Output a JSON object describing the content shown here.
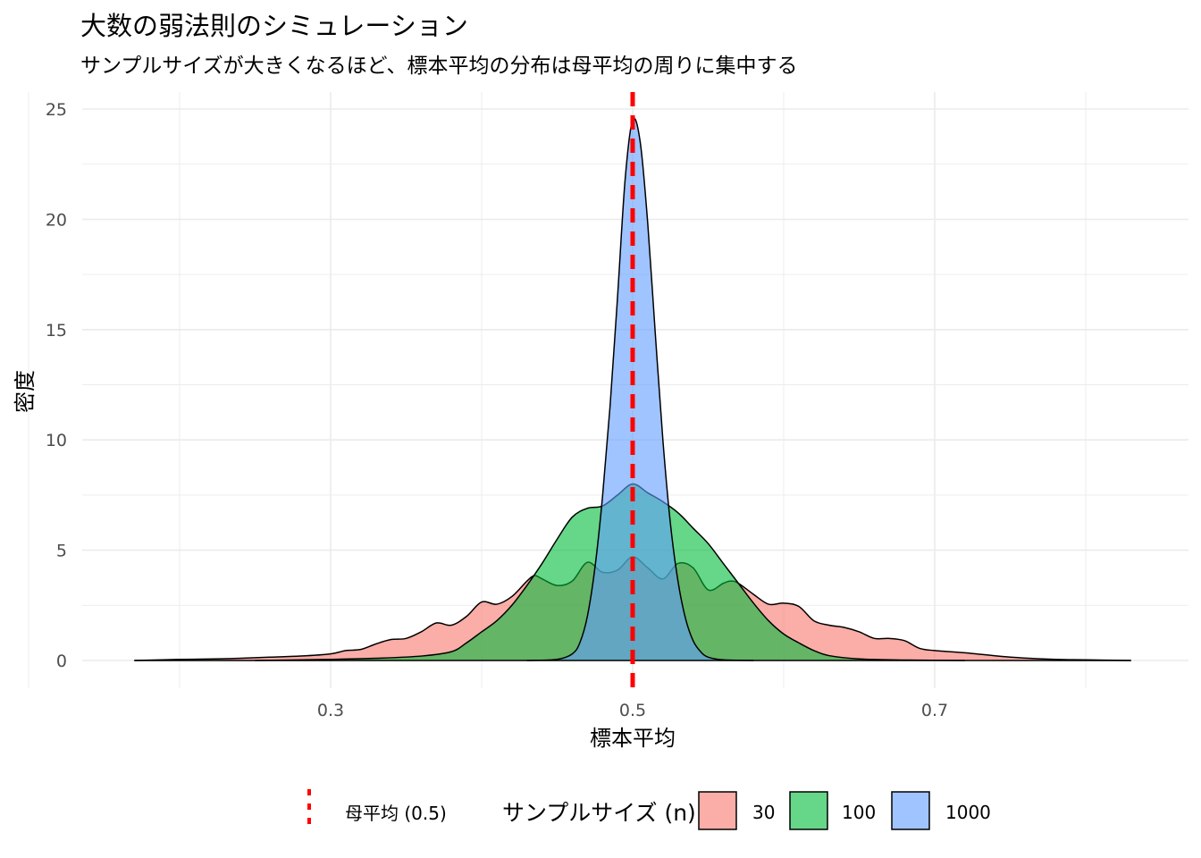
{
  "chart_data": {
    "type": "area",
    "title": "大数の弱法則のシミュレーション",
    "subtitle": "サンプルサイズが大きくなるほど、標本平均の分布は母平均の周りに集中する",
    "xlabel": "標本平均",
    "ylabel": "密度",
    "xlim": [
      0.1,
      0.9
    ],
    "ylim": [
      0,
      25
    ],
    "x_ticks": [
      0.3,
      0.5,
      0.7
    ],
    "x_tick_labels": [
      "0.3",
      "0.5",
      "0.7"
    ],
    "y_ticks": [
      0,
      5,
      10,
      15,
      20,
      25
    ],
    "y_tick_labels": [
      "0",
      "5",
      "10",
      "15",
      "20",
      "25"
    ],
    "grid": true,
    "legend_position": "bottom",
    "legend_title": "サンプルサイズ (n)",
    "reference_line": {
      "x": 0.5,
      "label": "母平均 (0.5)",
      "color": "#ff0000",
      "style": "dashed"
    },
    "series": [
      {
        "name": "30",
        "color": "#f8766d",
        "x": [
          0.17,
          0.2,
          0.23,
          0.26,
          0.28,
          0.3,
          0.31,
          0.32,
          0.33,
          0.34,
          0.35,
          0.36,
          0.37,
          0.38,
          0.39,
          0.4,
          0.41,
          0.42,
          0.43,
          0.435,
          0.44,
          0.45,
          0.46,
          0.47,
          0.48,
          0.49,
          0.5,
          0.51,
          0.52,
          0.53,
          0.54,
          0.55,
          0.56,
          0.565,
          0.57,
          0.58,
          0.59,
          0.6,
          0.61,
          0.62,
          0.63,
          0.64,
          0.65,
          0.66,
          0.67,
          0.68,
          0.69,
          0.7,
          0.72,
          0.75,
          0.78,
          0.8,
          0.83
        ],
        "y": [
          0,
          0.05,
          0.08,
          0.15,
          0.2,
          0.3,
          0.45,
          0.5,
          0.75,
          0.95,
          1.0,
          1.3,
          1.7,
          1.6,
          2.0,
          2.65,
          2.55,
          2.9,
          3.6,
          3.85,
          3.7,
          3.4,
          3.6,
          4.45,
          4.0,
          4.1,
          4.7,
          4.2,
          3.7,
          4.4,
          4.2,
          3.2,
          3.5,
          3.6,
          3.5,
          3.0,
          2.55,
          2.6,
          2.45,
          1.8,
          1.6,
          1.5,
          1.3,
          1.0,
          1.0,
          0.9,
          0.55,
          0.45,
          0.35,
          0.15,
          0.05,
          0.03,
          0
        ]
      },
      {
        "name": "100",
        "color": "#00ba38",
        "x": [
          0.25,
          0.3,
          0.33,
          0.36,
          0.38,
          0.39,
          0.4,
          0.41,
          0.42,
          0.43,
          0.44,
          0.45,
          0.46,
          0.47,
          0.48,
          0.49,
          0.5,
          0.51,
          0.52,
          0.53,
          0.54,
          0.55,
          0.56,
          0.57,
          0.58,
          0.59,
          0.6,
          0.61,
          0.62,
          0.63,
          0.65,
          0.68,
          0.72
        ],
        "y": [
          0,
          0.05,
          0.1,
          0.2,
          0.4,
          0.8,
          1.3,
          1.8,
          2.5,
          3.4,
          4.4,
          5.5,
          6.5,
          6.9,
          7.0,
          7.5,
          8.0,
          7.6,
          7.2,
          6.7,
          6.0,
          5.3,
          4.4,
          3.5,
          2.6,
          1.8,
          1.2,
          0.8,
          0.45,
          0.22,
          0.07,
          0.02,
          0
        ]
      },
      {
        "name": "1000",
        "color": "#619cff",
        "x": [
          0.43,
          0.45,
          0.46,
          0.465,
          0.47,
          0.475,
          0.48,
          0.485,
          0.49,
          0.495,
          0.5,
          0.505,
          0.51,
          0.515,
          0.52,
          0.525,
          0.53,
          0.535,
          0.54,
          0.545,
          0.55,
          0.56,
          0.58
        ],
        "y": [
          0,
          0.05,
          0.3,
          0.8,
          2.0,
          4.2,
          7.4,
          11.5,
          16.5,
          21.8,
          24.5,
          23.5,
          19.8,
          14.8,
          10.0,
          6.2,
          3.6,
          1.9,
          0.9,
          0.4,
          0.15,
          0.03,
          0
        ]
      }
    ]
  }
}
